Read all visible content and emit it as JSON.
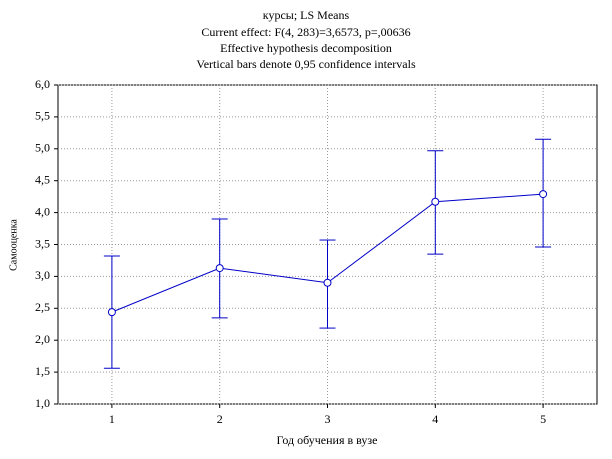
{
  "chart_data": {
    "type": "line",
    "title_lines": [
      "курсы; LS Means",
      "Current effect: F(4, 283)=3,6573, p=,00636",
      "Effective hypothesis decomposition",
      "Vertical bars denote 0,95 confidence intervals"
    ],
    "x_label": "Год обучения в вузе",
    "y_label": "Самооценка",
    "categories": [
      "1",
      "2",
      "3",
      "4",
      "5"
    ],
    "series": [
      {
        "color": "#0000c8",
        "values": [
          2.44,
          3.13,
          2.9,
          4.17,
          4.29
        ],
        "ci_lower": [
          1.56,
          2.35,
          2.19,
          3.35,
          3.46
        ],
        "ci_upper": [
          3.32,
          3.9,
          3.57,
          4.97,
          5.15
        ]
      }
    ],
    "ylim": [
      1,
      6
    ],
    "yticks": [
      {
        "value": 1,
        "label": "1,0"
      },
      {
        "value": 1.5,
        "label": "1,5"
      },
      {
        "value": 2,
        "label": "2,0"
      },
      {
        "value": 2.5,
        "label": "2,5"
      },
      {
        "value": 3,
        "label": "3,0"
      },
      {
        "value": 3.5,
        "label": "3,5"
      },
      {
        "value": 4,
        "label": "4,0"
      },
      {
        "value": 4.5,
        "label": "4,5"
      },
      {
        "value": 5,
        "label": "5,0"
      },
      {
        "value": 5.5,
        "label": "5,5"
      },
      {
        "value": 6,
        "label": "6,0"
      }
    ],
    "grid": true
  }
}
